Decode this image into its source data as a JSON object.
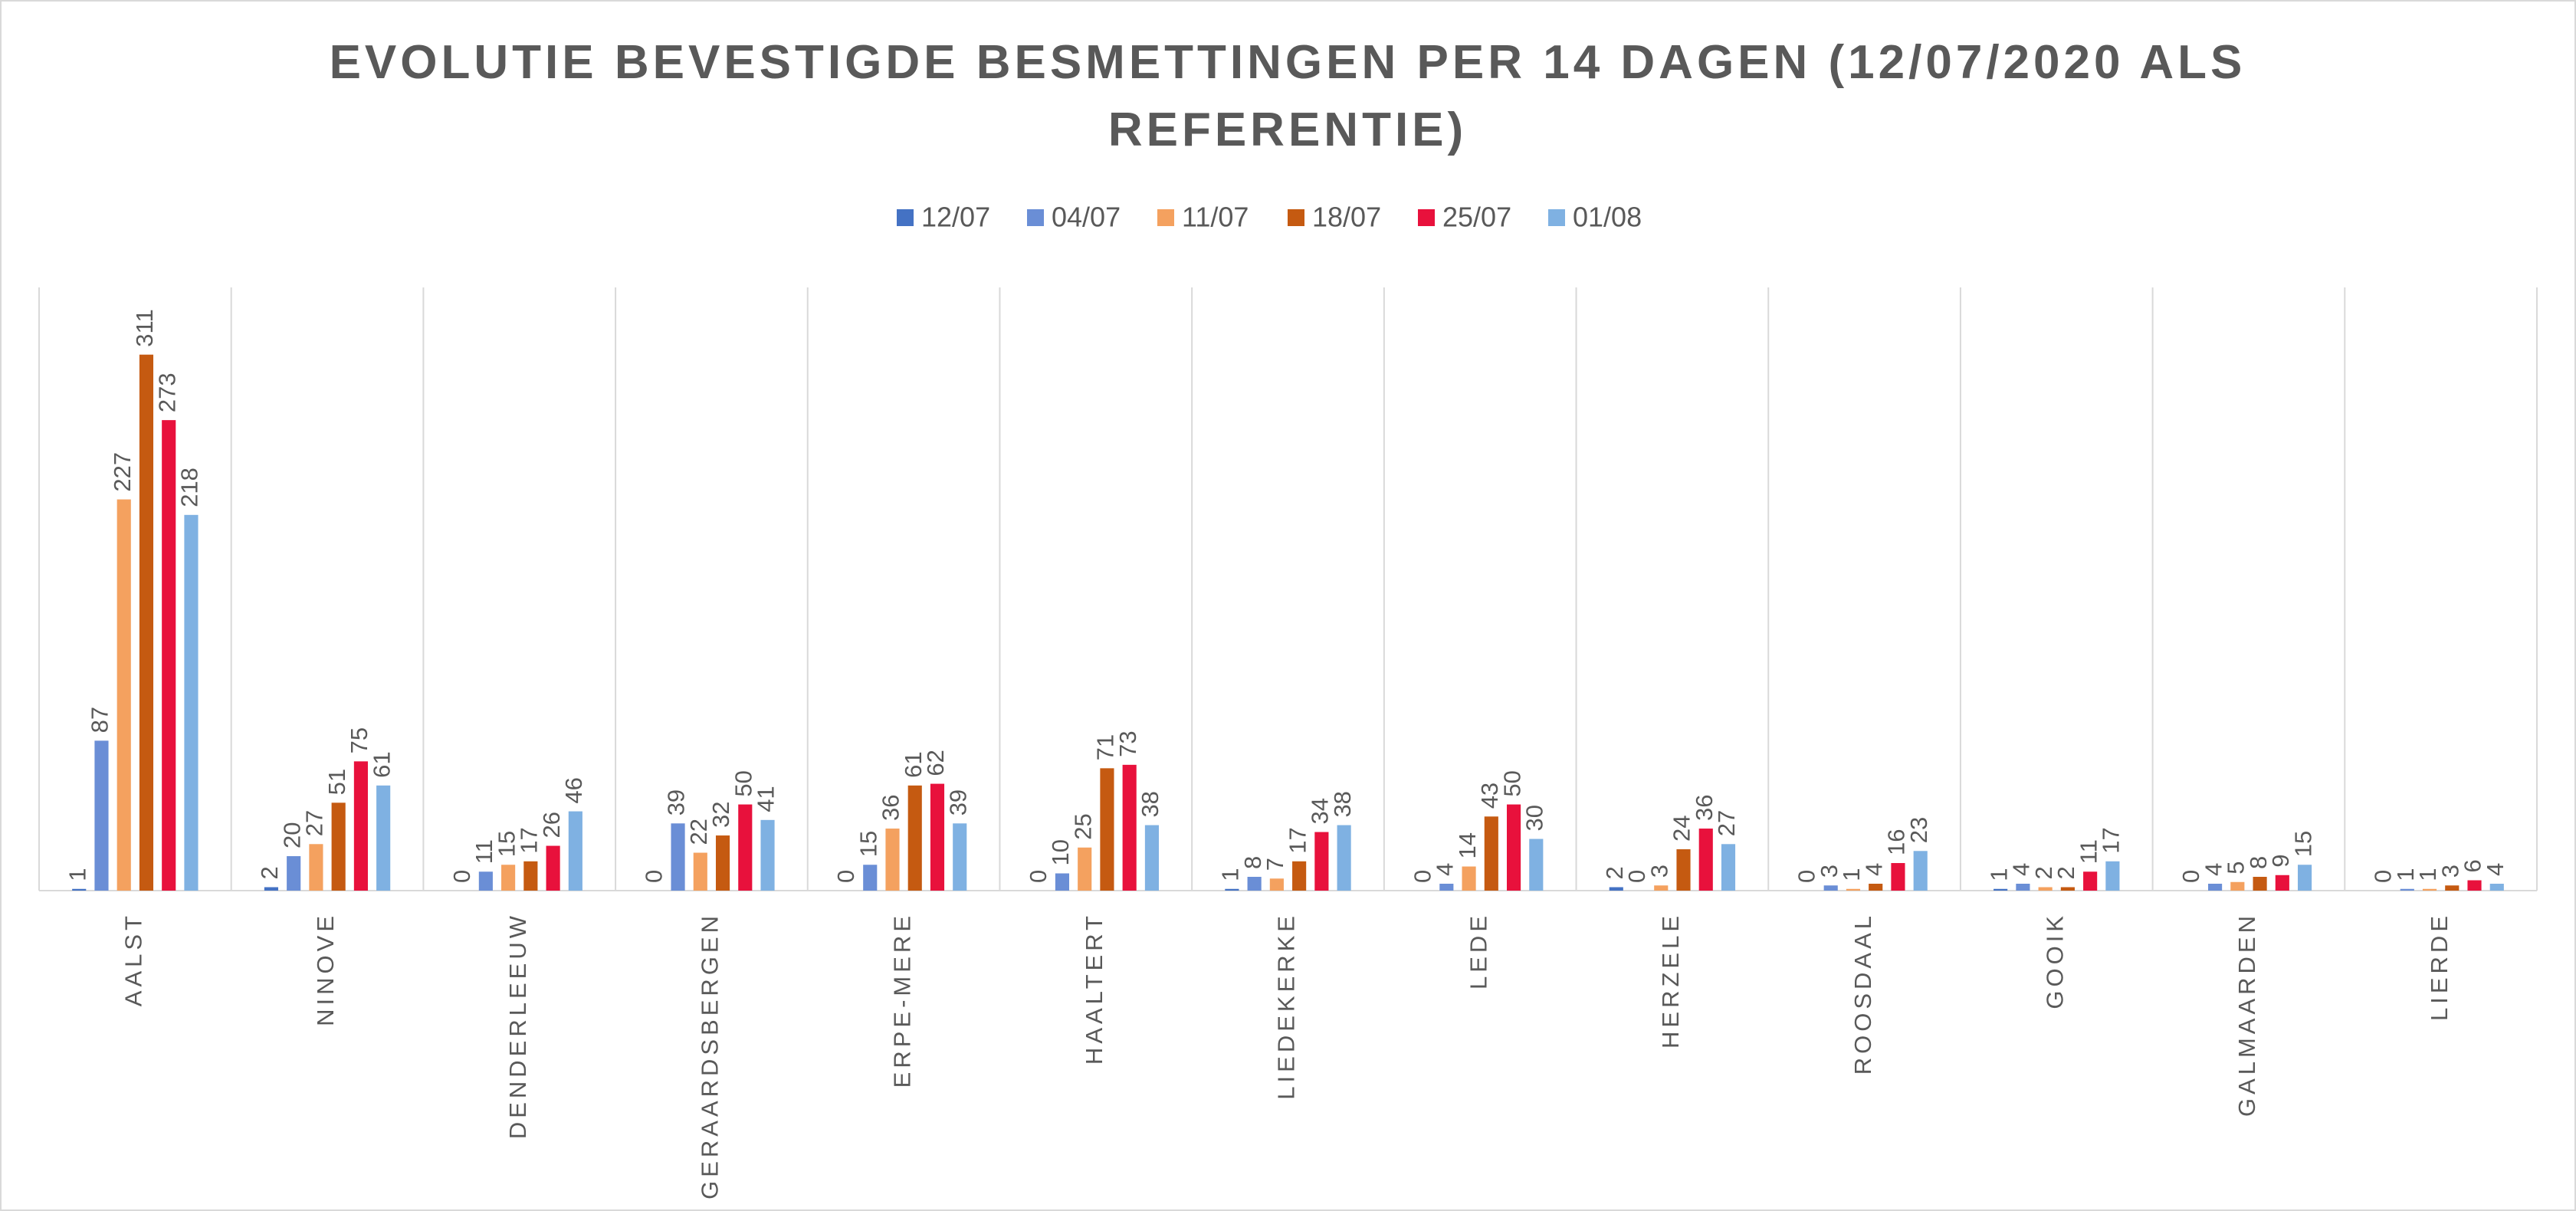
{
  "chart_data": {
    "type": "bar",
    "title": "EVOLUTIE BEVESTIGDE BESMETTINGEN PER 14 DAGEN (12/07/2020 ALS REFERENTIE)",
    "categories": [
      "AALST",
      "NINOVE",
      "DENDERLEEUW",
      "GERAARDSBERGEN",
      "ERPE-MERE",
      "HAALTERT",
      "LIEDEKERKE",
      "LEDE",
      "HERZELE",
      "ROOSDAAL",
      "GOOIK",
      "GALMAARDEN",
      "LIERDE"
    ],
    "series": [
      {
        "name": "12/07",
        "color": "#4472c4",
        "values": [
          1,
          2,
          0,
          0,
          0,
          0,
          1,
          0,
          2,
          0,
          1,
          0,
          0
        ]
      },
      {
        "name": "04/07",
        "color": "#6a8ed6",
        "values": [
          87,
          20,
          11,
          39,
          15,
          10,
          8,
          4,
          0,
          3,
          4,
          4,
          1
        ]
      },
      {
        "name": "11/07",
        "color": "#f4a15f",
        "values": [
          227,
          27,
          15,
          22,
          36,
          25,
          7,
          14,
          3,
          1,
          2,
          5,
          1
        ]
      },
      {
        "name": "18/07",
        "color": "#c55a11",
        "values": [
          311,
          51,
          17,
          32,
          61,
          71,
          17,
          43,
          24,
          4,
          2,
          8,
          3
        ]
      },
      {
        "name": "25/07",
        "color": "#e8113c",
        "values": [
          273,
          75,
          26,
          50,
          62,
          73,
          34,
          50,
          36,
          16,
          11,
          9,
          6
        ]
      },
      {
        "name": "01/08",
        "color": "#7fb1e2",
        "values": [
          218,
          61,
          46,
          41,
          39,
          38,
          38,
          30,
          27,
          23,
          17,
          15,
          4
        ]
      }
    ],
    "ylim": [
      0,
      350
    ]
  }
}
